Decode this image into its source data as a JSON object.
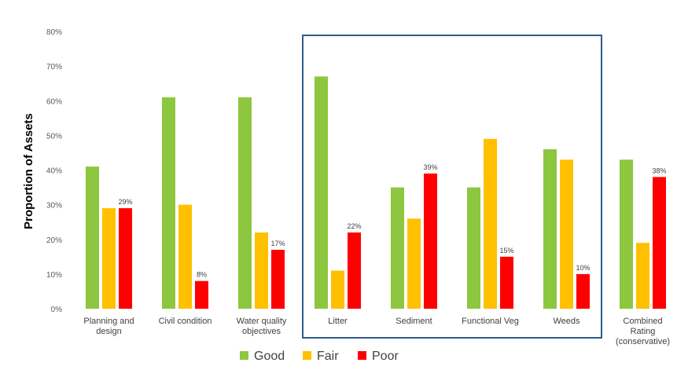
{
  "chart_data": {
    "type": "bar",
    "ylabel": "Proportion of Assets",
    "xlabel": "",
    "ylim": [
      0,
      80
    ],
    "y_ticks": [
      "0%",
      "10%",
      "20%",
      "30%",
      "40%",
      "50%",
      "60%",
      "70%",
      "80%"
    ],
    "categories": [
      [
        "Planning and",
        "design"
      ],
      [
        "Civil condition"
      ],
      [
        "Water quality",
        "objectives"
      ],
      [
        "Litter"
      ],
      [
        "Sediment"
      ],
      [
        "Functional Veg"
      ],
      [
        "Weeds"
      ],
      [
        "Combined",
        "Rating",
        "(conservative)"
      ]
    ],
    "series": [
      {
        "name": "Good",
        "color": "#8dc63f",
        "values": [
          41,
          61,
          61,
          67,
          35,
          35,
          46,
          43
        ]
      },
      {
        "name": "Fair",
        "color": "#ffc000",
        "values": [
          29,
          30,
          22,
          11,
          26,
          49,
          43,
          19
        ]
      },
      {
        "name": "Poor",
        "color": "#ff0000",
        "values": [
          29,
          8,
          17,
          22,
          39,
          15,
          10,
          38
        ]
      }
    ],
    "data_labels": {
      "series": "Poor",
      "labels": [
        "29%",
        "8%",
        "17%",
        "22%",
        "39%",
        "15%",
        "10%",
        "38%"
      ]
    },
    "highlight_box": {
      "from_category": "Litter",
      "to_category": "Weeds",
      "color": "#2e5d8c"
    },
    "legend_position": "bottom-center",
    "grid": false
  }
}
